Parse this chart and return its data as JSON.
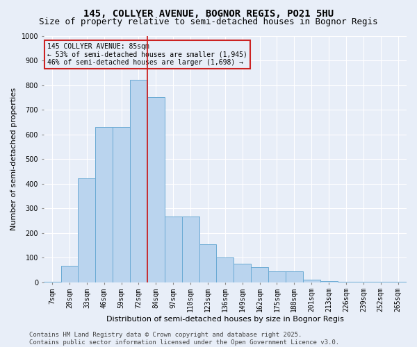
{
  "title1": "145, COLLYER AVENUE, BOGNOR REGIS, PO21 5HU",
  "title2": "Size of property relative to semi-detached houses in Bognor Regis",
  "xlabel": "Distribution of semi-detached houses by size in Bognor Regis",
  "ylabel": "Number of semi-detached properties",
  "categories": [
    "7sqm",
    "20sqm",
    "33sqm",
    "46sqm",
    "59sqm",
    "72sqm",
    "84sqm",
    "97sqm",
    "110sqm",
    "123sqm",
    "136sqm",
    "149sqm",
    "162sqm",
    "175sqm",
    "188sqm",
    "201sqm",
    "213sqm",
    "226sqm",
    "239sqm",
    "252sqm",
    "265sqm"
  ],
  "values": [
    2,
    65,
    420,
    630,
    630,
    820,
    750,
    265,
    265,
    155,
    100,
    75,
    60,
    45,
    45,
    10,
    5,
    2,
    2,
    2,
    2
  ],
  "bar_color": "#bad4ee",
  "bar_edge_color": "#6aaad4",
  "vline_color": "#cc2222",
  "vline_x_index": 6,
  "annotation_box_color": "#cc2222",
  "ylim": [
    0,
    1000
  ],
  "yticks": [
    0,
    100,
    200,
    300,
    400,
    500,
    600,
    700,
    800,
    900,
    1000
  ],
  "footer1": "Contains HM Land Registry data © Crown copyright and database right 2025.",
  "footer2": "Contains public sector information licensed under the Open Government Licence v3.0.",
  "bg_color": "#e8eef8",
  "grid_color": "#ffffff",
  "title_fontsize": 10,
  "subtitle_fontsize": 9,
  "axis_label_fontsize": 8,
  "tick_fontsize": 7,
  "footer_fontsize": 6.5,
  "property_label": "145 COLLYER AVENUE: 85sqm",
  "pct_smaller": "53% of semi-detached houses are smaller (1,945)",
  "pct_larger": "46% of semi-detached houses are larger (1,698)"
}
